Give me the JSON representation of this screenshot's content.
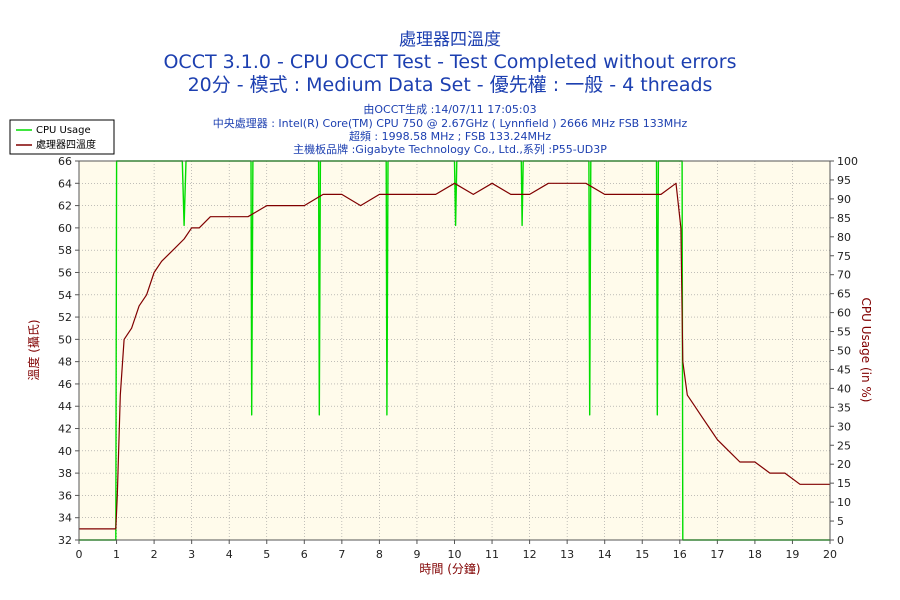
{
  "header": {
    "title": "處理器四溫度",
    "line2": "OCCT 3.1.0 - CPU OCCT Test - Test Completed without errors",
    "line3": "20分 - 模式 : Medium Data Set - 優先權 : 一般 - 4 threads",
    "info": [
      "由OCCT生成 :14/07/11 17:05:03",
      "中央處理器 : Intel(R) Core(TM) CPU 750 @ 2.67GHz ( Lynnfield ) 2666 MHz FSB 133MHz",
      "超頻 : 1998.58 MHz ; FSB 133.24MHz",
      "主機板品牌 :Gigabyte Technology Co., Ltd.,系列 :P55-UD3P"
    ]
  },
  "colors": {
    "temperature": "#800000",
    "cpu_usage": "#00dd00",
    "plot_bg": "#fffbeb",
    "text": "#1c3fb0"
  },
  "chart_data": {
    "type": "line",
    "xlabel": "時間 (分鐘)",
    "ylabel": "溫度 (攝氏)",
    "y2label": "CPU Usage (in %)",
    "xlim": [
      0,
      20
    ],
    "ylim": [
      32,
      66
    ],
    "y2lim": [
      0,
      100
    ],
    "x_ticks": [
      0,
      1,
      2,
      3,
      4,
      5,
      6,
      7,
      8,
      9,
      10,
      11,
      12,
      13,
      14,
      15,
      16,
      17,
      18,
      19,
      20
    ],
    "y_ticks": [
      32,
      34,
      36,
      38,
      40,
      42,
      44,
      46,
      48,
      50,
      52,
      54,
      56,
      58,
      60,
      62,
      64,
      66
    ],
    "y2_ticks": [
      0,
      5,
      10,
      15,
      20,
      25,
      30,
      35,
      40,
      45,
      50,
      55,
      60,
      65,
      70,
      75,
      80,
      85,
      90,
      95,
      100
    ],
    "grid": true,
    "legend_position": "top-left",
    "series": [
      {
        "name": "CPU Usage",
        "axis": "right",
        "x": [
          0,
          0.98,
          1.0,
          1.05,
          2.75,
          2.8,
          2.85,
          4.58,
          4.6,
          4.63,
          6.38,
          6.4,
          6.43,
          8.18,
          8.2,
          8.23,
          10.0,
          10.03,
          10.06,
          11.78,
          11.8,
          11.83,
          13.58,
          13.6,
          13.63,
          15.38,
          15.4,
          15.43,
          16.06,
          16.08,
          20
        ],
        "values": [
          0,
          0,
          100,
          100,
          100,
          83,
          100,
          100,
          33,
          100,
          100,
          33,
          100,
          100,
          33,
          100,
          100,
          83,
          100,
          100,
          83,
          100,
          100,
          33,
          100,
          100,
          33,
          100,
          100,
          0,
          0
        ]
      },
      {
        "name": "處理器四溫度",
        "axis": "left",
        "x": [
          0,
          0.5,
          0.98,
          1.02,
          1.1,
          1.2,
          1.4,
          1.6,
          1.8,
          2.0,
          2.2,
          2.5,
          2.8,
          3.0,
          3.2,
          3.5,
          4.0,
          4.5,
          5.0,
          5.5,
          6.0,
          6.5,
          7.0,
          7.5,
          8.0,
          8.5,
          9.0,
          9.5,
          10.0,
          10.5,
          11.0,
          11.5,
          12.0,
          12.5,
          13.0,
          13.5,
          14.0,
          14.5,
          15.0,
          15.5,
          15.9,
          16.03,
          16.08,
          16.2,
          16.4,
          16.6,
          16.8,
          17.0,
          17.3,
          17.6,
          18.0,
          18.4,
          18.8,
          19.2,
          19.6,
          20.0
        ],
        "values": [
          33,
          33,
          33,
          36,
          45,
          50,
          51,
          53,
          54,
          56,
          57,
          58,
          59,
          60,
          60,
          61,
          61,
          61,
          62,
          62,
          62,
          63,
          63,
          62,
          63,
          63,
          63,
          63,
          64,
          63,
          64,
          63,
          63,
          64,
          64,
          64,
          63,
          63,
          63,
          63,
          64,
          60,
          48,
          45,
          44,
          43,
          42,
          41,
          40,
          39,
          39,
          38,
          38,
          37,
          37,
          37
        ]
      }
    ]
  }
}
